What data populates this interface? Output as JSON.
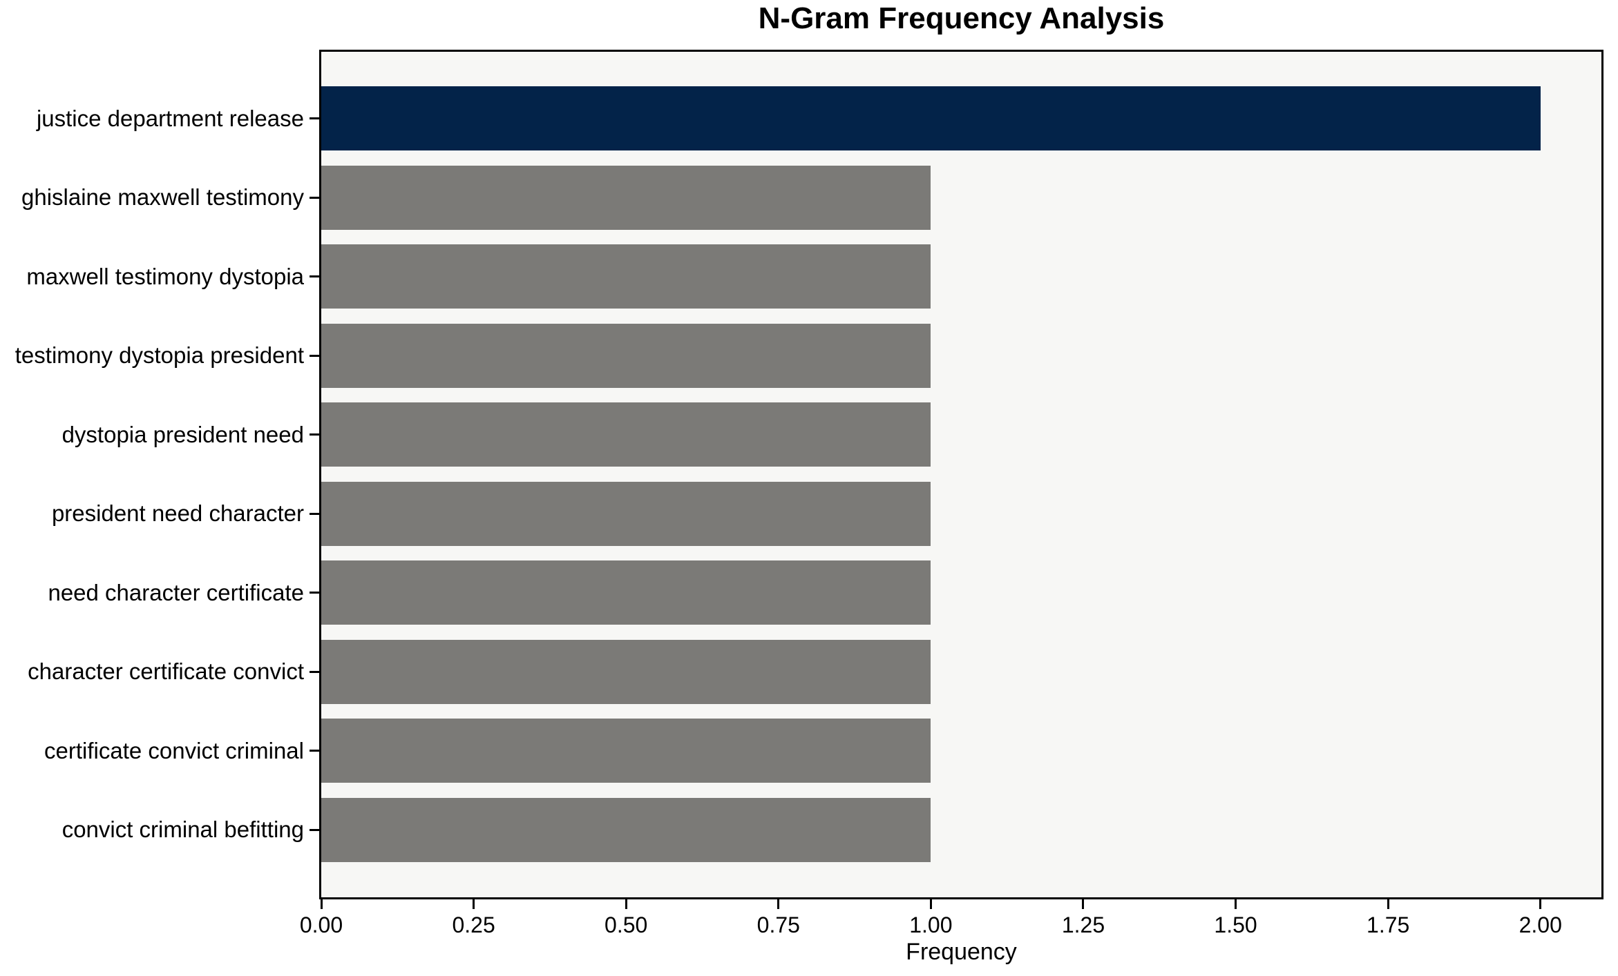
{
  "chart_data": {
    "type": "bar",
    "orientation": "horizontal",
    "title": "N-Gram Frequency Analysis",
    "xlabel": "Frequency",
    "ylabel": "",
    "categories": [
      "justice department release",
      "ghislaine maxwell testimony",
      "maxwell testimony dystopia",
      "testimony dystopia president",
      "dystopia president need",
      "president need character",
      "need character certificate",
      "character certificate convict",
      "certificate convict criminal",
      "convict criminal befitting"
    ],
    "values": [
      2,
      1,
      1,
      1,
      1,
      1,
      1,
      1,
      1,
      1
    ],
    "highlight_index": 0,
    "xlim": [
      0,
      2.1
    ],
    "xtick_values": [
      0,
      0.25,
      0.5,
      0.75,
      1.0,
      1.25,
      1.5,
      1.75,
      2.0
    ],
    "xtick_labels": [
      "0.00",
      "0.25",
      "0.50",
      "0.75",
      "1.00",
      "1.25",
      "1.50",
      "1.75",
      "2.00"
    ],
    "grid": false,
    "legend": null,
    "colors": {
      "highlight_bar": "#032349",
      "default_bar": "#7B7A77",
      "plot_background": "#F7F7F5",
      "figure_background": "#FFFFFF",
      "axis": "#000000",
      "text": "#000000"
    }
  }
}
